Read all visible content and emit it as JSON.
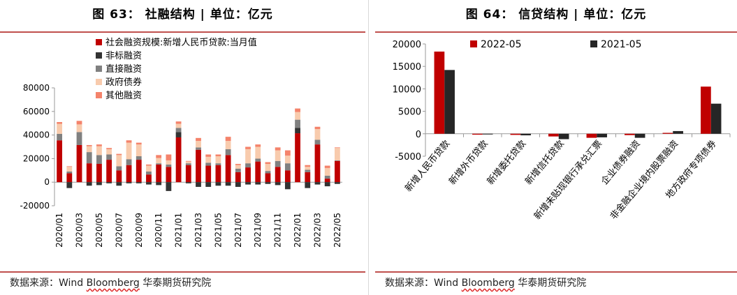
{
  "left": {
    "title": "图 63：  社融结构 | 单位：亿元",
    "source": "数据来源：Wind Bloomberg 华泰期货研究院",
    "source_underlined": "Bloomberg"
  },
  "right": {
    "title": "图 64：  信贷结构 | 单位：亿元",
    "source": "数据来源：Wind Bloomberg 华泰期货研究院",
    "source_underlined": "Bloomberg"
  },
  "chart_data": [
    {
      "type": "bar",
      "stacked": true,
      "categories": [
        "2020/01",
        "2020/02",
        "2020/03",
        "2020/04",
        "2020/05",
        "2020/06",
        "2020/07",
        "2020/08",
        "2020/09",
        "2020/10",
        "2020/11",
        "2020/12",
        "2021/01",
        "2021/02",
        "2021/03",
        "2021/04",
        "2021/05",
        "2021/06",
        "2021/07",
        "2021/08",
        "2021/09",
        "2021/10",
        "2021/11",
        "2021/12",
        "2022/01",
        "2022/02",
        "2022/03",
        "2022/04",
        "2022/05"
      ],
      "tick_labels": [
        "2020/01",
        "2020/03",
        "2020/05",
        "2020/07",
        "2020/09",
        "2020/11",
        "2021/01",
        "2021/03",
        "2021/05",
        "2021/07",
        "2021/09",
        "2021/11",
        "2022/01",
        "2022/03",
        "2022/05"
      ],
      "series": [
        {
          "name": "社会融资规模:新增人民币贷款:当月值",
          "color": "#c00000",
          "values": [
            35500,
            7500,
            31500,
            16000,
            15500,
            19000,
            10000,
            14500,
            19000,
            6500,
            15000,
            13000,
            38000,
            14500,
            27500,
            14000,
            14500,
            23000,
            8500,
            12500,
            17500,
            7500,
            13000,
            10000,
            41500,
            8500,
            32000,
            3000,
            18000
          ]
        },
        {
          "name": "非标融资",
          "color": "#333333",
          "values": [
            0,
            -5000,
            0,
            -3000,
            -2500,
            -1000,
            -3000,
            -1000,
            -1000,
            -2000,
            -2500,
            -7500,
            4500,
            -1000,
            -4000,
            -4000,
            -3000,
            -3000,
            -4000,
            -2000,
            -2000,
            -1500,
            -2500,
            -6000,
            4500,
            -5000,
            -2000,
            -3500,
            -1500
          ]
        },
        {
          "name": "直接融资",
          "color": "#808080",
          "values": [
            5500,
            1500,
            11000,
            9500,
            7500,
            4500,
            3500,
            5000,
            3000,
            2500,
            1000,
            2000,
            3500,
            1500,
            2000,
            2500,
            1500,
            5000,
            3000,
            3500,
            2500,
            2000,
            5000,
            6000,
            7000,
            2000,
            4000,
            2500,
            500
          ]
        },
        {
          "name": "政府债券",
          "color": "#f8cbad",
          "values": [
            8500,
            4000,
            6500,
            5000,
            7500,
            4500,
            9500,
            14000,
            10000,
            5000,
            4500,
            3500,
            3500,
            1500,
            5500,
            5000,
            6000,
            7000,
            3000,
            12000,
            10000,
            6000,
            9000,
            6500,
            6500,
            2500,
            9000,
            6500,
            10500
          ]
        },
        {
          "name": "其他融资",
          "color": "#f4836b",
          "values": [
            1500,
            500,
            3000,
            1000,
            1500,
            1000,
            1000,
            2000,
            1500,
            1000,
            2500,
            5000,
            2000,
            500,
            2500,
            2000,
            1500,
            3500,
            1000,
            2000,
            2000,
            1500,
            2500,
            4500,
            3000,
            1500,
            2000,
            2000,
            500
          ]
        }
      ],
      "ylim": [
        -20000,
        80000
      ],
      "yticks": [
        -20000,
        0,
        20000,
        40000,
        60000,
        80000
      ],
      "legend_position": "top",
      "grid": false
    },
    {
      "type": "bar",
      "categories": [
        "新增人民币贷款",
        "新增外币贷款",
        "新增委托贷款",
        "新增信托贷款",
        "新增未贴现银行承兑汇票",
        "企业债券融资",
        "非金融企业境内股票融资",
        "地方政府专项债券"
      ],
      "series": [
        {
          "name": "2022-05",
          "color": "#c00000",
          "values": [
            18300,
            -200,
            -250,
            -600,
            -900,
            -300,
            200,
            10500
          ]
        },
        {
          "name": "2021-05",
          "color": "#262626",
          "values": [
            14200,
            -150,
            -350,
            -1200,
            -800,
            -900,
            600,
            6700
          ]
        }
      ],
      "ylim": [
        -5000,
        20000
      ],
      "yticks": [
        -5000,
        0,
        5000,
        10000,
        15000,
        20000
      ],
      "legend_position": "top",
      "grid": false
    }
  ]
}
